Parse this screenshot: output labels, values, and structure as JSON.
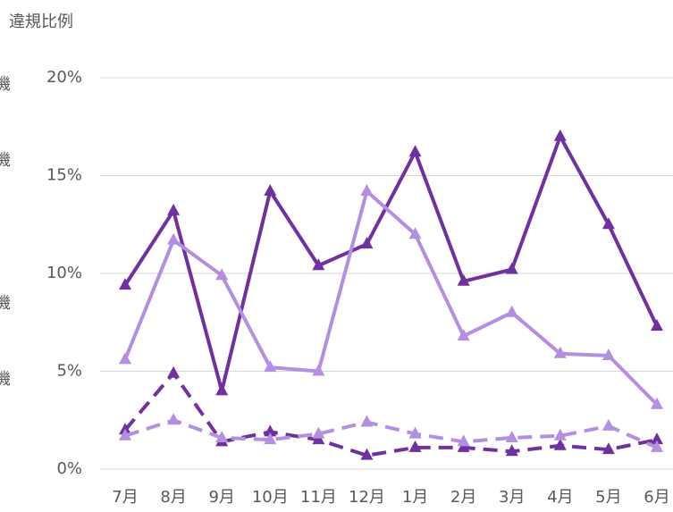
{
  "chart_data": {
    "type": "line",
    "title": "違規比例",
    "categories": [
      "7月",
      "8月",
      "9月",
      "10月",
      "11月",
      "12月",
      "1月",
      "2月",
      "3月",
      "4月",
      "5月",
      "6月"
    ],
    "series": [
      {
        "name": "機",
        "color": "#7030a0",
        "dashed": false,
        "values": [
          9.4,
          13.2,
          4.0,
          14.2,
          10.4,
          11.5,
          16.2,
          9.6,
          10.2,
          17.0,
          12.5,
          7.3
        ]
      },
      {
        "name": "機",
        "color": "#b48ee0",
        "dashed": false,
        "values": [
          5.6,
          11.7,
          9.9,
          5.2,
          5.0,
          14.2,
          12.0,
          6.8,
          8.0,
          5.9,
          5.8,
          3.3
        ]
      },
      {
        "name": "機",
        "color": "#7030a0",
        "dashed": true,
        "values": [
          2.0,
          4.9,
          1.4,
          1.9,
          1.5,
          0.7,
          1.1,
          1.1,
          0.9,
          1.2,
          1.0,
          1.5
        ]
      },
      {
        "name": "機",
        "color": "#b48ee0",
        "dashed": true,
        "values": [
          1.7,
          2.5,
          1.6,
          1.5,
          1.8,
          2.4,
          1.8,
          1.4,
          1.6,
          1.7,
          2.2,
          1.1
        ]
      }
    ],
    "ylim": [
      0,
      20
    ],
    "yticks": [
      {
        "value": 0,
        "label": "0%"
      },
      {
        "value": 5,
        "label": "5%"
      },
      {
        "value": 10,
        "label": "10%"
      },
      {
        "value": 15,
        "label": "15%"
      },
      {
        "value": 20,
        "label": "20%"
      }
    ],
    "grid": true,
    "legend": "left"
  }
}
